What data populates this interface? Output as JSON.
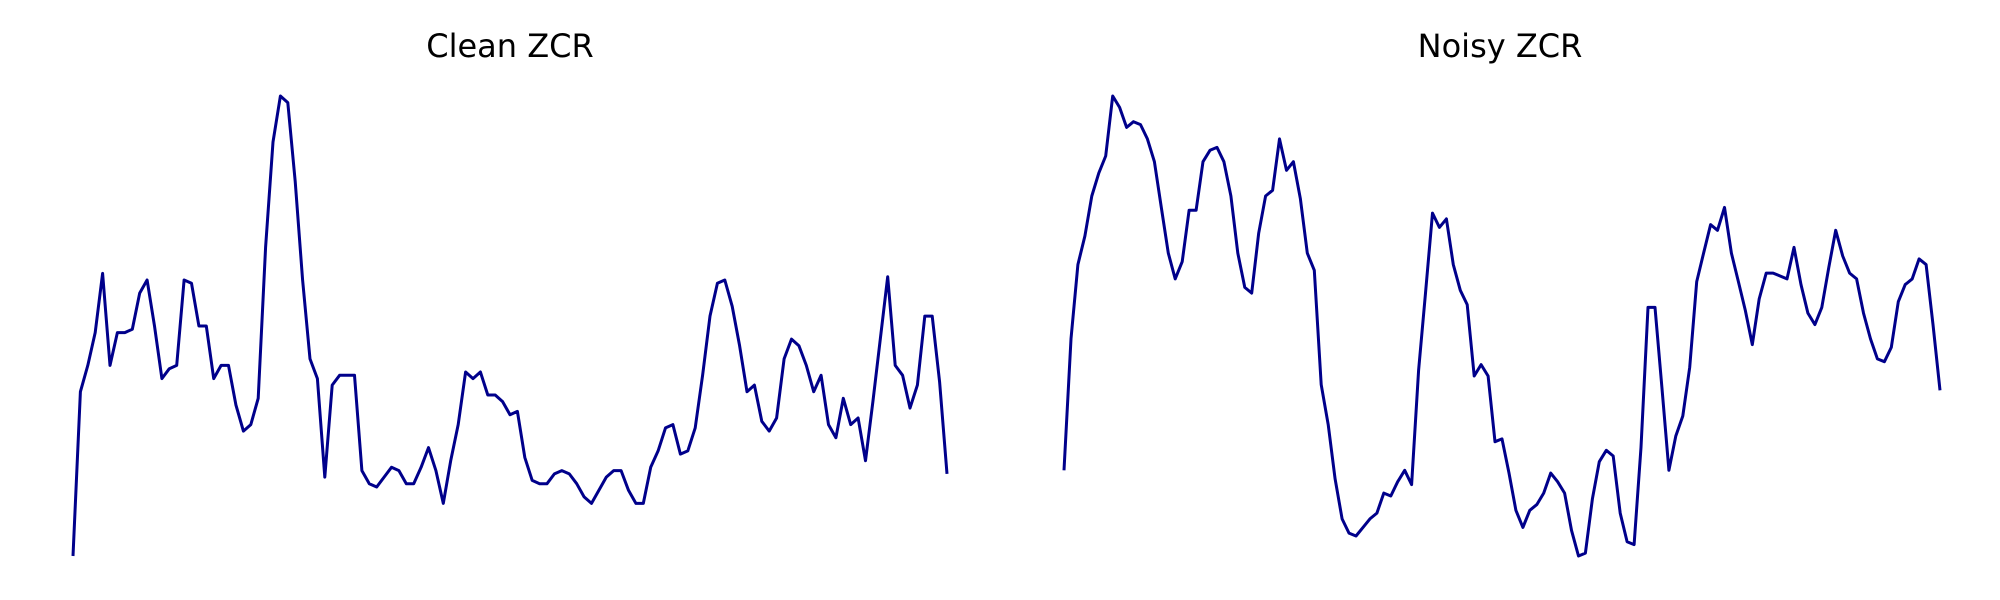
{
  "chart_data": [
    {
      "type": "line",
      "title": "Clean ZCR",
      "xlabel": "",
      "ylabel": "",
      "axes_visible": false,
      "grid": false,
      "color": "#00008B",
      "series": [
        {
          "values": [
            -3.2,
            -0.7,
            -0.3,
            0.2,
            1.1,
            -0.3,
            0.2,
            0.2,
            0.25,
            0.8,
            1.0,
            0.3,
            -0.5,
            -0.35,
            -0.3,
            1.0,
            0.95,
            0.3,
            0.3,
            -0.5,
            -0.3,
            -0.3,
            -0.9,
            -1.3,
            -1.2,
            -0.8,
            1.5,
            3.1,
            3.8,
            3.7,
            2.5,
            1.0,
            -0.2,
            -0.5,
            -2.0,
            -0.6,
            -0.45,
            -0.45,
            -0.45,
            -1.9,
            -2.1,
            -2.15,
            -2.0,
            -1.85,
            -1.9,
            -2.1,
            -2.1,
            -1.85,
            -1.55,
            -1.9,
            -2.4,
            -1.75,
            -1.2,
            -0.4,
            -0.5,
            -0.4,
            -0.75,
            -0.75,
            -0.85,
            -1.05,
            -1.0,
            -1.7,
            -2.05,
            -2.1,
            -2.1,
            -1.95,
            -1.9,
            -1.95,
            -2.1,
            -2.3,
            -2.4,
            -2.2,
            -2.0,
            -1.9,
            -1.9,
            -2.2,
            -2.4,
            -2.4,
            -1.85,
            -1.6,
            -1.25,
            -1.2,
            -1.65,
            -1.6,
            -1.25,
            -0.45,
            0.45,
            0.95,
            1.0,
            0.6,
            0.0,
            -0.7,
            -0.6,
            -1.15,
            -1.3,
            -1.1,
            -0.2,
            0.1,
            0.0,
            -0.3,
            -0.7,
            -0.45,
            -1.2,
            -1.4,
            -0.8,
            -1.2,
            -1.1,
            -1.75,
            -0.85,
            0.1,
            1.05,
            -0.3,
            -0.45,
            -0.95,
            -0.6,
            0.45,
            0.45,
            -0.55,
            -1.95
          ],
          "color": "#00008B"
        }
      ]
    },
    {
      "type": "line",
      "title": "Noisy ZCR",
      "xlabel": "",
      "ylabel": "",
      "axes_visible": false,
      "grid": false,
      "color": "#00008B",
      "series": [
        {
          "values": [
            -1.8,
            0.5,
            1.8,
            2.3,
            3.0,
            3.4,
            3.7,
            4.75,
            4.55,
            4.2,
            4.3,
            4.25,
            4.0,
            3.6,
            2.8,
            2.0,
            1.55,
            1.85,
            2.75,
            2.75,
            3.6,
            3.8,
            3.85,
            3.6,
            3.0,
            2.0,
            1.4,
            1.3,
            2.35,
            3.0,
            3.1,
            4.0,
            3.45,
            3.6,
            2.95,
            2.0,
            1.7,
            -0.3,
            -1.0,
            -1.95,
            -2.65,
            -2.9,
            -2.95,
            -2.8,
            -2.65,
            -2.55,
            -2.2,
            -2.25,
            -2.0,
            -1.8,
            -2.05,
            -0.05,
            1.3,
            2.7,
            2.45,
            2.6,
            1.8,
            1.35,
            1.1,
            -0.15,
            0.05,
            -0.15,
            -1.3,
            -1.25,
            -1.85,
            -2.5,
            -2.8,
            -2.5,
            -2.4,
            -2.2,
            -1.85,
            -2.0,
            -2.2,
            -2.85,
            -3.3,
            -3.25,
            -2.3,
            -1.65,
            -1.45,
            -1.55,
            -2.55,
            -3.05,
            -3.1,
            -1.4,
            1.05,
            1.05,
            -0.35,
            -1.8,
            -1.2,
            -0.85,
            0.0,
            1.5,
            2.0,
            2.5,
            2.4,
            2.8,
            2.0,
            1.5,
            1.0,
            0.4,
            1.2,
            1.65,
            1.65,
            1.6,
            1.55,
            2.1,
            1.45,
            0.95,
            0.75,
            1.05,
            1.75,
            2.4,
            1.95,
            1.65,
            1.55,
            0.95,
            0.5,
            0.15,
            0.1,
            0.35,
            1.15,
            1.45,
            1.55,
            1.9,
            1.8,
            0.75,
            -0.4
          ],
          "color": "#00008B"
        }
      ]
    }
  ]
}
